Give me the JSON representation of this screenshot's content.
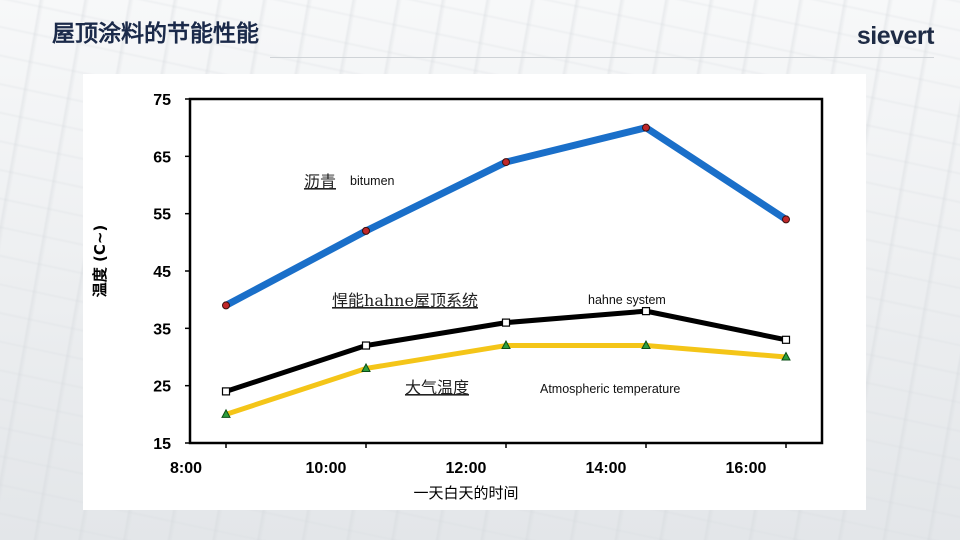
{
  "header": {
    "title": "屋顶涂料的节能性能",
    "logo_text": "sievert"
  },
  "chart_data": {
    "type": "line",
    "x": [
      "8:00",
      "10:00",
      "12:00",
      "14:00",
      "16:00"
    ],
    "xlabel": "一天白天的时间",
    "ylabel": "温度 (C~)",
    "ylim": [
      15,
      75
    ],
    "yticks": [
      15,
      25,
      35,
      45,
      55,
      65,
      75
    ],
    "grid": false,
    "series": [
      {
        "name": "沥青",
        "name_en": "bitumen",
        "color": "#1a6fc9",
        "marker": "circle",
        "marker_color": "#c0282a",
        "values": [
          39,
          52,
          64,
          70,
          54
        ]
      },
      {
        "name": "悍能hahne屋顶系统",
        "name_en": "hahne system",
        "color": "#000000",
        "marker": "square",
        "marker_color": "#ffffff",
        "values": [
          24,
          32,
          36,
          38,
          33
        ]
      },
      {
        "name": "大气温度",
        "name_en": "Atmospheric temperature",
        "color": "#f4c518",
        "marker": "triangle",
        "marker_color": "#2e9e3e",
        "values": [
          20,
          28,
          32,
          32,
          30
        ]
      }
    ]
  }
}
